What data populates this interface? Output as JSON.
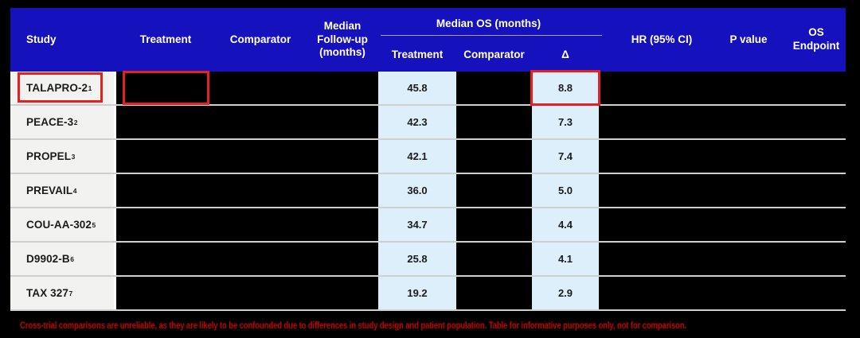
{
  "table": {
    "header": {
      "study": "Study",
      "treatment": "Treatment",
      "comparator": "Comparator",
      "median_followup": "Median\nFollow-up\n(months)",
      "median_os_group": "Median OS (months)",
      "os_sub_treatment": "Treatment",
      "os_sub_comparator": "Comparator",
      "os_sub_delta": "Δ",
      "hr_ci": "HR (95% CI)",
      "p_value": "P value",
      "os_endpoint": "OS\nEndpoint"
    },
    "rows": [
      {
        "study": "TALAPRO-2",
        "study_sup": "1",
        "os_treatment": "45.8",
        "os_delta": "8.8",
        "highlighted": true
      },
      {
        "study": "PEACE-3",
        "study_sup": "2",
        "os_treatment": "42.3",
        "os_delta": "7.3",
        "highlighted": false
      },
      {
        "study": "PROPEL",
        "study_sup": "3",
        "os_treatment": "42.1",
        "os_delta": "7.4",
        "highlighted": false
      },
      {
        "study": "PREVAIL",
        "study_sup": "4",
        "os_treatment": "36.0",
        "os_delta": "5.0",
        "highlighted": false
      },
      {
        "study": "COU-AA-302",
        "study_sup": "5",
        "os_treatment": "34.7",
        "os_delta": "4.4",
        "highlighted": false
      },
      {
        "study": "D9902-B",
        "study_sup": "6",
        "os_treatment": "25.8",
        "os_delta": "4.1",
        "highlighted": false
      },
      {
        "study": "TAX 327",
        "study_sup": "7",
        "os_treatment": "19.2",
        "os_delta": "2.9",
        "highlighted": false
      }
    ]
  },
  "footnote": "Cross-trial comparisons are unreliable, as they are likely to be confounded due to differences in study design and patient population. Table for informative purposes only, not for comparison.",
  "colors": {
    "header_blue": "#1512bd",
    "value_cell_blue": "#ddeffa",
    "study_cell_gray": "#f2f2f0",
    "row_separator": "#cfcfcf",
    "highlight_red": "#e5201e",
    "footnote_red": "#c40000",
    "background": "#000000"
  },
  "chart_data": {
    "type": "table",
    "title": "",
    "columns": [
      "Study",
      "Treatment",
      "Comparator",
      "Median Follow-up (months)",
      "Median OS (months) - Treatment",
      "Median OS (months) - Comparator",
      "Median OS (months) - Δ",
      "HR (95% CI)",
      "P value",
      "OS Endpoint"
    ],
    "rows": [
      [
        "TALAPRO-2¹",
        "",
        "",
        "",
        "45.8",
        "",
        "8.8",
        "",
        "",
        ""
      ],
      [
        "PEACE-3²",
        "",
        "",
        "",
        "42.3",
        "",
        "7.3",
        "",
        "",
        ""
      ],
      [
        "PROPEL³",
        "",
        "",
        "",
        "42.1",
        "",
        "7.4",
        "",
        "",
        ""
      ],
      [
        "PREVAIL⁴",
        "",
        "",
        "",
        "36.0",
        "",
        "5.0",
        "",
        "",
        ""
      ],
      [
        "COU-AA-302⁵",
        "",
        "",
        "",
        "34.7",
        "",
        "4.4",
        "",
        "",
        ""
      ],
      [
        "D9902-B⁶",
        "",
        "",
        "",
        "25.8",
        "",
        "4.1",
        "",
        "",
        ""
      ],
      [
        "TAX 327⁷",
        "",
        "",
        "",
        "19.2",
        "",
        "2.9",
        "",
        "",
        ""
      ]
    ],
    "redacted_columns": [
      "Treatment",
      "Comparator",
      "Median Follow-up (months)",
      "Median OS (months) - Comparator",
      "HR (95% CI)",
      "P value",
      "OS Endpoint"
    ],
    "highlighted_cells_row_TALAPRO-2": [
      "Study",
      "Treatment",
      "Median OS (months) - Δ"
    ]
  }
}
